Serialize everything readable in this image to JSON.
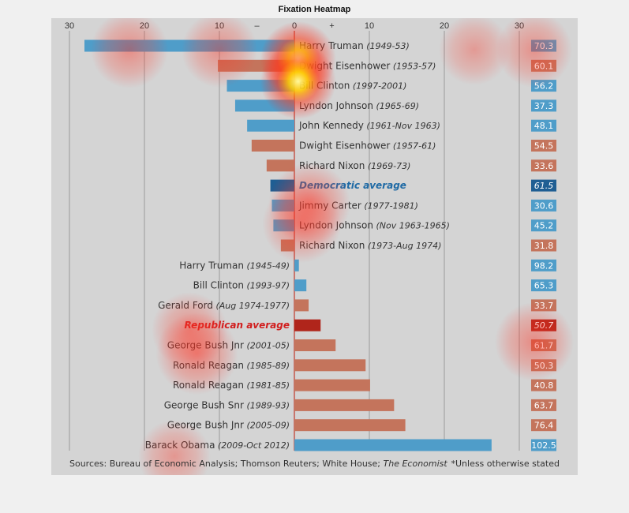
{
  "figure": {
    "title": "Fixation Heatmap"
  },
  "chart_data": {
    "type": "bar",
    "orientation": "horizontal",
    "x_ticks": [
      "30",
      "20",
      "10",
      "–",
      "0",
      "+",
      "10",
      "20",
      "30"
    ],
    "xlim": [
      -30,
      30
    ],
    "grid": true,
    "rows": [
      {
        "name": "Harry Truman",
        "period": "(1949-53)",
        "value": -28,
        "party": "D",
        "side_value": "70.3"
      },
      {
        "name": "Dwight Eisenhower",
        "period": "(1953-57)",
        "value": -10.2,
        "party": "R",
        "side_value": "60.1"
      },
      {
        "name": "Bill Clinton",
        "period": "(1997-2001)",
        "value": -9,
        "party": "D",
        "side_value": "56.2"
      },
      {
        "name": "Lyndon Johnson",
        "period": "(1965-69)",
        "value": -7.9,
        "party": "D",
        "side_value": "37.3"
      },
      {
        "name": "John Kennedy",
        "period": "(1961-Nov 1963)",
        "value": -6.3,
        "party": "D",
        "side_value": "48.1"
      },
      {
        "name": "Dwight Eisenhower",
        "period": "(1957-61)",
        "value": -5.7,
        "party": "R",
        "side_value": "54.5"
      },
      {
        "name": "Richard Nixon",
        "period": "(1969-73)",
        "value": -3.7,
        "party": "R",
        "side_value": "33.6"
      },
      {
        "name": "Democratic average",
        "period": "",
        "value": -3.2,
        "party": "D-avg",
        "side_value": "61.5"
      },
      {
        "name": "Jimmy Carter",
        "period": "(1977-1981)",
        "value": -3,
        "party": "D",
        "side_value": "30.6"
      },
      {
        "name": "Lyndon Johnson",
        "period": "(Nov 1963-1965)",
        "value": -2.8,
        "party": "D",
        "side_value": "45.2"
      },
      {
        "name": "Richard Nixon",
        "period": "(1973-Aug 1974)",
        "value": -1.8,
        "party": "R",
        "side_value": "31.8"
      },
      {
        "name": "Harry Truman",
        "period": "(1945-49)",
        "value": 0.6,
        "party": "D",
        "side_value": "98.2"
      },
      {
        "name": "Bill Clinton",
        "period": "(1993-97)",
        "value": 1.6,
        "party": "D",
        "side_value": "65.3"
      },
      {
        "name": "Gerald Ford",
        "period": "(Aug 1974-1977)",
        "value": 1.9,
        "party": "R",
        "side_value": "33.7"
      },
      {
        "name": "Republican average",
        "period": "",
        "value": 3.5,
        "party": "R-avg",
        "side_value": "50.7"
      },
      {
        "name": "George Bush Jnr",
        "period": "(2001-05)",
        "value": 5.5,
        "party": "R",
        "side_value": "61.7"
      },
      {
        "name": "Ronald Reagan",
        "period": "(1985-89)",
        "value": 9.5,
        "party": "R",
        "side_value": "50.3"
      },
      {
        "name": "Ronald Reagan",
        "period": "(1981-85)",
        "value": 10.1,
        "party": "R",
        "side_value": "40.8"
      },
      {
        "name": "George Bush Snr",
        "period": "(1989-93)",
        "value": 13.3,
        "party": "R",
        "side_value": "63.7"
      },
      {
        "name": "George Bush Jnr",
        "period": "(2005-09)",
        "value": 14.8,
        "party": "R",
        "side_value": "76.4"
      },
      {
        "name": "Barack Obama",
        "period": "(2009-Oct 2012)",
        "value": 26.3,
        "party": "D",
        "side_value": "102.5"
      }
    ],
    "colors": {
      "democrat": "#4f9dc9",
      "republican": "#c4745c",
      "dem_average": "#1f5e93",
      "rep_average": "#b0251b",
      "dem_avg_text": "#1f6aa5",
      "rep_avg_text": "#d11d1d",
      "zero_line": "#c0392b",
      "grid": "#9a9a9a",
      "label_text": "#333333"
    },
    "heatmap": {
      "overlay": "fixation heatmap",
      "hotspot_colors": [
        "#ff1a1a",
        "#ff9900",
        "#ffff66"
      ],
      "hotspots": [
        {
          "x": 0.5,
          "y": 52,
          "weight": 1.0
        },
        {
          "x": 0.5,
          "y": 80,
          "weight": 0.9
        },
        {
          "x": 2,
          "y": 235,
          "weight": 0.6
        },
        {
          "x": 1,
          "y": 260,
          "weight": 0.5
        },
        {
          "x": -13,
          "y": 425,
          "weight": 0.6
        },
        {
          "x": -14,
          "y": 395,
          "weight": 0.4
        },
        {
          "x": -22,
          "y": 40,
          "weight": 0.45
        },
        {
          "x": -10,
          "y": 40,
          "weight": 0.4
        },
        {
          "x": 32,
          "y": 40,
          "weight": 0.4
        },
        {
          "x": 32,
          "y": 410,
          "weight": 0.5
        },
        {
          "x": -16,
          "y": 555,
          "weight": 0.3
        },
        {
          "x": 24,
          "y": 40,
          "weight": 0.25
        }
      ]
    }
  },
  "footer": {
    "sources_prefix": "Sources: Bureau of Economic Analysis; Thomson Reuters; White House; ",
    "sources_italic": "The Economist",
    "footnote": "*Unless otherwise stated"
  }
}
